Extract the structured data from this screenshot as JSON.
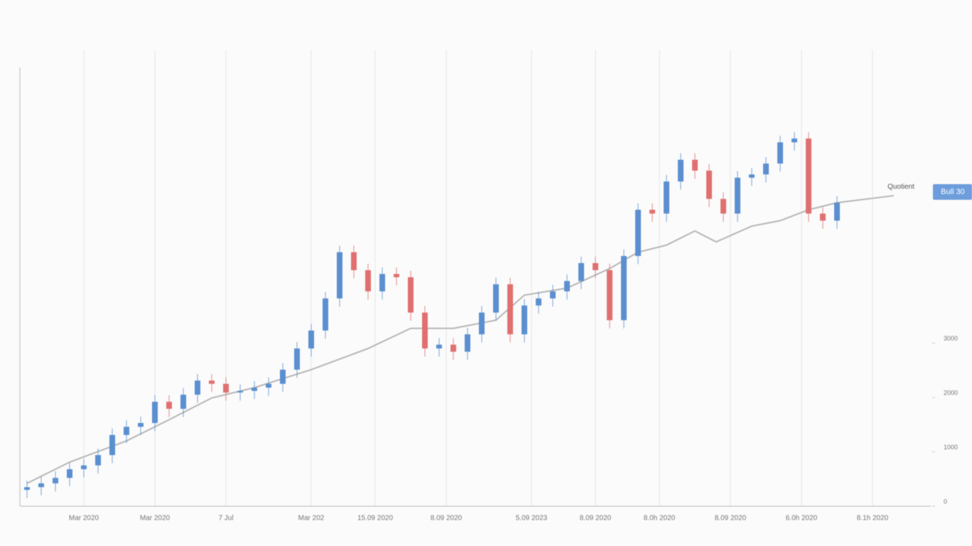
{
  "chart_data": {
    "type": "candlestick",
    "up_color": "#5b8fd0",
    "down_color": "#e07070",
    "grid": true,
    "xlim": [
      0,
      128.2
    ],
    "xticks": [
      {
        "value": 9,
        "label": "Mar 2020"
      },
      {
        "value": 19,
        "label": "Mar 2020"
      },
      {
        "value": 29,
        "label": "7 Jul"
      },
      {
        "value": 41,
        "label": "Mar 202"
      },
      {
        "value": 50,
        "label": "15.09 2020"
      },
      {
        "value": 60,
        "label": "8.09 2020"
      },
      {
        "value": 72,
        "label": "5.09 2023"
      },
      {
        "value": 81,
        "label": "8.09 2020"
      },
      {
        "value": 90,
        "label": "8.0h 2020"
      },
      {
        "value": 100,
        "label": "8.09 2020"
      },
      {
        "value": 110,
        "label": "6.0h 2020"
      },
      {
        "value": 120,
        "label": "8.1h 2020"
      }
    ],
    "ylim": [
      0,
      8000
    ],
    "yticks": [
      0,
      1000,
      2000,
      3000
    ],
    "x": [
      1,
      3,
      5,
      7,
      9,
      11,
      13,
      15,
      17,
      19,
      21,
      23,
      25,
      27,
      29,
      31,
      33,
      35,
      37,
      39,
      41,
      43,
      45,
      47,
      49,
      51,
      53,
      55,
      57,
      59,
      61,
      63,
      65,
      67,
      69,
      71,
      73,
      75,
      77,
      79,
      81,
      83,
      85,
      87,
      89,
      91,
      93,
      95,
      97,
      99,
      101,
      103,
      105,
      107,
      109,
      111,
      113,
      115
    ],
    "open": [
      300,
      350,
      420,
      520,
      680,
      750,
      940,
      1310,
      1460,
      1530,
      1920,
      1790,
      2050,
      2310,
      2250,
      2090,
      2120,
      2180,
      2250,
      2510,
      2900,
      3230,
      3820,
      4670,
      4340,
      3950,
      4270,
      4210,
      3560,
      2900,
      2970,
      2840,
      3160,
      3560,
      4080,
      3160,
      3690,
      3820,
      3950,
      4140,
      4470,
      4340,
      3420,
      4600,
      5450,
      5380,
      5970,
      6370,
      6170,
      5650,
      5380,
      6040,
      6100,
      6300,
      6690,
      6760,
      5380,
      5250
    ],
    "high": [
      470,
      540,
      640,
      800,
      870,
      1060,
      1430,
      1580,
      1650,
      2040,
      2040,
      2170,
      2430,
      2430,
      2370,
      2240,
      2300,
      2370,
      2630,
      3020,
      3350,
      3940,
      4790,
      4790,
      4460,
      4390,
      4390,
      4330,
      3680,
      3090,
      3090,
      3280,
      3680,
      4200,
      4200,
      3810,
      3940,
      4070,
      4260,
      4590,
      4590,
      4460,
      4720,
      5570,
      5570,
      6090,
      6490,
      6490,
      6290,
      5770,
      6160,
      6220,
      6420,
      6810,
      6880,
      6880,
      5500,
      5700
    ],
    "low": [
      150,
      200,
      270,
      370,
      530,
      600,
      790,
      1160,
      1310,
      1380,
      1640,
      1640,
      1900,
      2100,
      1940,
      1940,
      1970,
      2030,
      2100,
      2360,
      2750,
      3080,
      3670,
      4190,
      3800,
      3800,
      4060,
      3410,
      2750,
      2750,
      2690,
      2690,
      3010,
      3410,
      3010,
      3010,
      3540,
      3670,
      3800,
      3990,
      4190,
      3270,
      3270,
      4450,
      5230,
      5230,
      5820,
      6020,
      5500,
      5230,
      5230,
      5890,
      5950,
      6150,
      6540,
      5230,
      5100,
      5100
    ],
    "close": [
      350,
      420,
      520,
      680,
      750,
      940,
      1310,
      1460,
      1530,
      1920,
      1790,
      2050,
      2310,
      2250,
      2090,
      2120,
      2180,
      2250,
      2510,
      2900,
      3230,
      3820,
      4670,
      4340,
      3950,
      4270,
      4210,
      3560,
      2900,
      2970,
      2840,
      3160,
      3560,
      4080,
      3160,
      3690,
      3820,
      3950,
      4140,
      4470,
      4340,
      3420,
      4600,
      5450,
      5380,
      5970,
      6370,
      6170,
      5650,
      5380,
      6040,
      6100,
      6300,
      6690,
      6760,
      5380,
      5250,
      5580
    ],
    "moving_average": {
      "color": "#b5b5b5",
      "x": [
        1,
        7,
        15,
        21,
        27,
        33,
        41,
        49,
        55,
        61,
        67,
        71,
        77,
        83,
        87,
        91,
        95,
        98,
        103,
        107,
        111,
        115,
        123
      ],
      "values": [
        420,
        810,
        1200,
        1590,
        1990,
        2180,
        2510,
        2900,
        3270,
        3270,
        3420,
        3880,
        4010,
        4370,
        4670,
        4800,
        5060,
        4860,
        5150,
        5250,
        5450,
        5580,
        5710
      ]
    },
    "annotation": "Quotient",
    "price_tag": "Bull 30"
  }
}
